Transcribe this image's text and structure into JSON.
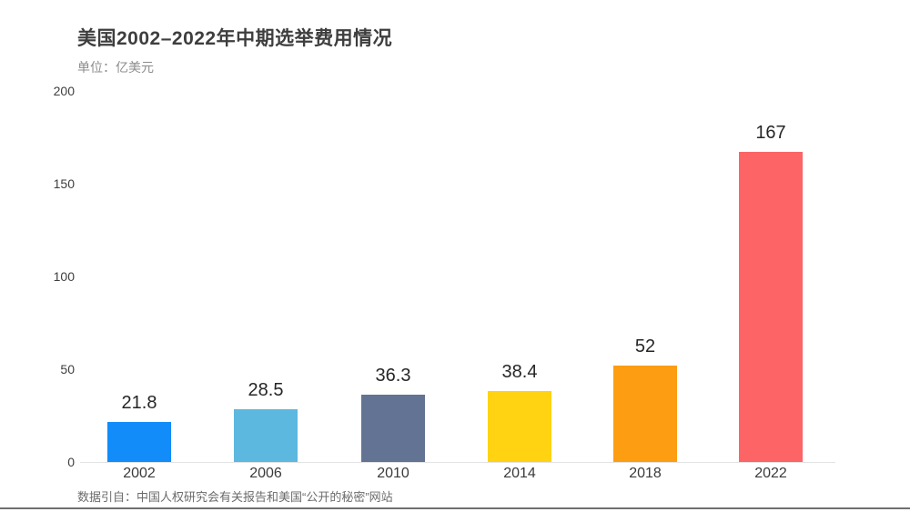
{
  "header": {
    "title": "美国2002–2022年中期选举费用情况",
    "unit_label": "单位：亿美元"
  },
  "footer": {
    "source": "数据引自：中国人权研究会有关报告和美国“公开的秘密”网站"
  },
  "chart_data": {
    "type": "bar",
    "title": "美国2002–2022年中期选举费用情况",
    "subtitle": "单位：亿美元",
    "categories": [
      "2002",
      "2006",
      "2010",
      "2014",
      "2018",
      "2022"
    ],
    "values": [
      21.8,
      28.5,
      36.3,
      38.4,
      52,
      167
    ],
    "value_labels": [
      "21.8",
      "28.5",
      "36.3",
      "38.4",
      "52",
      "167"
    ],
    "bar_colors": [
      "#118cf8",
      "#5cb8df",
      "#637394",
      "#ffd311",
      "#fc9d12",
      "#fc6466"
    ],
    "xlabel": "",
    "ylabel": "亿美元",
    "ylim": [
      0,
      200
    ],
    "yticks": [
      0,
      50,
      100,
      150,
      200
    ],
    "grid": false,
    "legend": false,
    "source_note": "数据引自：中国人权研究会有关报告和美国“公开的秘密”网站"
  }
}
